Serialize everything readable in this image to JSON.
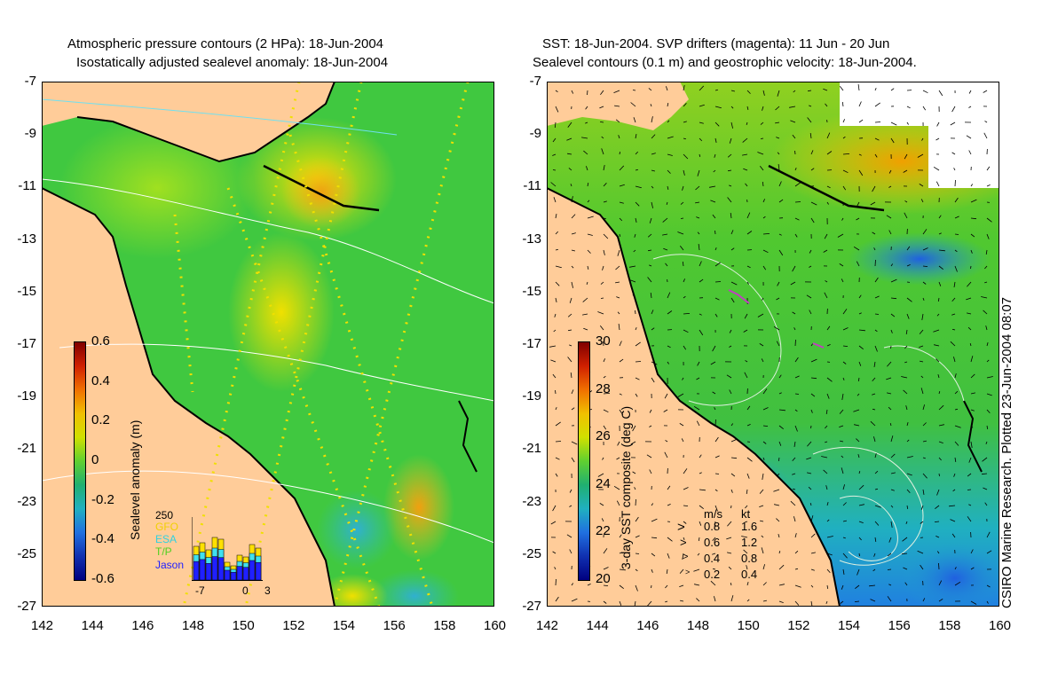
{
  "left_panel": {
    "title_line1": "Atmospheric pressure contours (2 HPa): 18-Jun-2004",
    "title_line2": "Isostatically adjusted sealevel anomaly: 18-Jun-2004",
    "colorbar": {
      "label": "Sealevel anomaly (m)",
      "ticks": [
        "0.6",
        "0.4",
        "0.2",
        "0",
        "-0.2",
        "-0.4",
        "-0.6"
      ],
      "range": [
        -0.6,
        0.6
      ]
    },
    "histogram": {
      "ymax_label": "250",
      "series": [
        {
          "name": "GFO",
          "color": "#ffe000"
        },
        {
          "name": "ESA",
          "color": "#40e0f0"
        },
        {
          "name": "T/P",
          "color": "#60e020"
        },
        {
          "name": "Jason",
          "color": "#2020ff"
        }
      ],
      "x_ticks": [
        "-7",
        "0",
        "3"
      ]
    }
  },
  "right_panel": {
    "title_line1": "SST: 18-Jun-2004. SVP drifters (magenta): 11 Jun - 20 Jun",
    "title_line2": "Sealevel contours (0.1 m) and geostrophic velocity: 18-Jun-2004.",
    "colorbar": {
      "label": "3-day SST composite (deg C)",
      "ticks": [
        "30",
        "28",
        "26",
        "24",
        "22",
        "20"
      ],
      "range": [
        20,
        30
      ]
    },
    "velocity_legend": {
      "header_ms": "m/s",
      "header_kt": "kt",
      "rows": [
        {
          "ms": "0.8",
          "kt": "1.6"
        },
        {
          "ms": "0.6",
          "kt": "1.2"
        },
        {
          "ms": "0.4",
          "kt": "0.8"
        },
        {
          "ms": "0.2",
          "kt": "0.4"
        }
      ]
    },
    "credit": "CSIRO Marine Research. Plotted 23-Jun-2004 08:07"
  },
  "axes": {
    "lon_ticks": [
      "142",
      "144",
      "146",
      "148",
      "150",
      "152",
      "154",
      "156",
      "158",
      "160"
    ],
    "lat_ticks": [
      "-7",
      "-9",
      "-11",
      "-13",
      "-15",
      "-17",
      "-19",
      "-21",
      "-23",
      "-25",
      "-27"
    ],
    "lon_range": [
      142,
      160
    ],
    "lat_range": [
      -27,
      -7
    ]
  },
  "colors": {
    "land": "#ffcc99",
    "ocean_base": "#3cc43c",
    "coast": "#000000"
  }
}
